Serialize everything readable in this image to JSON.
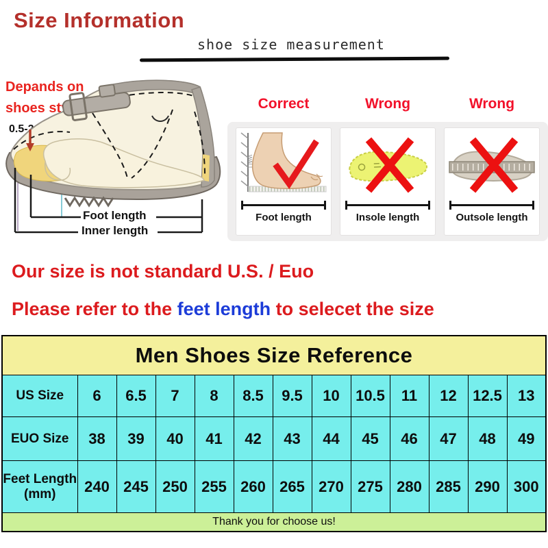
{
  "page": {
    "title": "Size Information",
    "subtitle": "shoe size measurement"
  },
  "diagram": {
    "note_line1": "Depands on",
    "note_line2": "shoes style",
    "gap_label": "0.5-2.5 cm",
    "foot_length_label": "Foot length",
    "inner_length_label": "Inner length"
  },
  "panels": [
    {
      "verdict": "Correct",
      "label": "Foot length",
      "wall_label": "WALL",
      "mark": "check-mark"
    },
    {
      "verdict": "Wrong",
      "label": "Insole length",
      "mark": "x-mark"
    },
    {
      "verdict": "Wrong",
      "label": "Outsole length",
      "mark": "x-mark"
    }
  ],
  "notes": {
    "line1": "Our size is not standard U.S. / Euo",
    "line2_pre": "Please refer to the ",
    "line2_highlight": "feet length",
    "line2_post": " to selecet the size"
  },
  "size_table": {
    "title": "Men Shoes Size Reference",
    "rows": [
      {
        "header": "US Size",
        "values": [
          "6",
          "6.5",
          "7",
          "8",
          "8.5",
          "9.5",
          "10",
          "10.5",
          "11",
          "12",
          "12.5",
          "13"
        ]
      },
      {
        "header": "EUO Size",
        "values": [
          "38",
          "39",
          "40",
          "41",
          "42",
          "43",
          "44",
          "45",
          "46",
          "47",
          "48",
          "49"
        ]
      },
      {
        "header": "Feet Length\n(mm)",
        "values": [
          "240",
          "245",
          "250",
          "255",
          "260",
          "265",
          "270",
          "275",
          "280",
          "285",
          "290",
          "300"
        ]
      }
    ],
    "footer": "Thank you for choose us!"
  },
  "colors": {
    "title_red": "#b4302b",
    "notice_red": "#dc1b1e",
    "notice_blue": "#1c3cd8",
    "verdict_red": "#f2112a",
    "table_title_yellow": "#f4f09c",
    "table_cyan": "#76eeec",
    "table_footer_green": "#ccf098",
    "insole_yellow": "#ecf373",
    "shoe_gray": "#a9a29a"
  }
}
